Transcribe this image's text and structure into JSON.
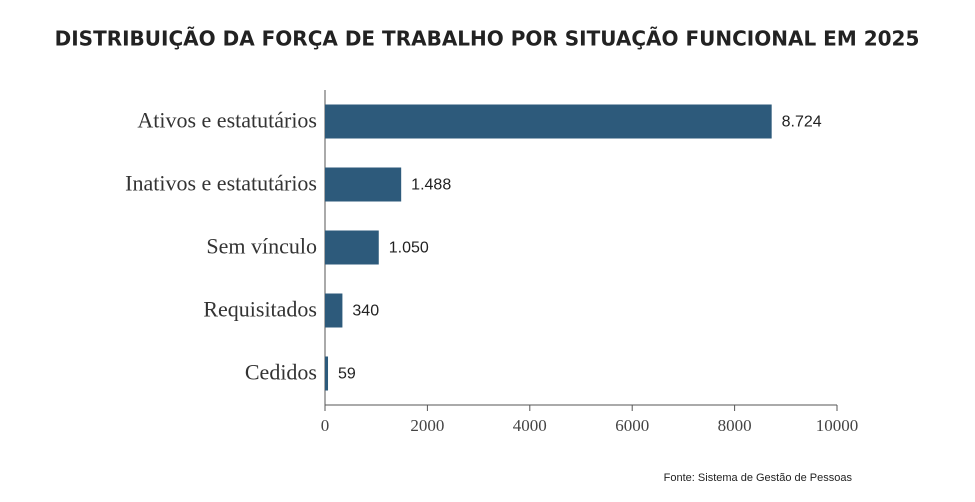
{
  "chart_data": {
    "type": "bar",
    "orientation": "horizontal",
    "title": "DISTRIBUIÇÃO DA FORÇA DE TRABALHO POR SITUAÇÃO FUNCIONAL EM 2025",
    "categories": [
      "Ativos e estatutários",
      "Inativos e estatutários",
      "Sem vínculo",
      "Requisitados",
      "Cedidos"
    ],
    "values": [
      8724,
      1488,
      1050,
      340,
      59
    ],
    "value_labels": [
      "8.724",
      "1.488",
      "1.050",
      "340",
      "59"
    ],
    "color": "#2d5a7b",
    "xlim": [
      0,
      10000
    ],
    "xticks": [
      0,
      2000,
      4000,
      6000,
      8000,
      10000
    ],
    "source": "Fonte: Sistema de Gestão de Pessoas"
  }
}
